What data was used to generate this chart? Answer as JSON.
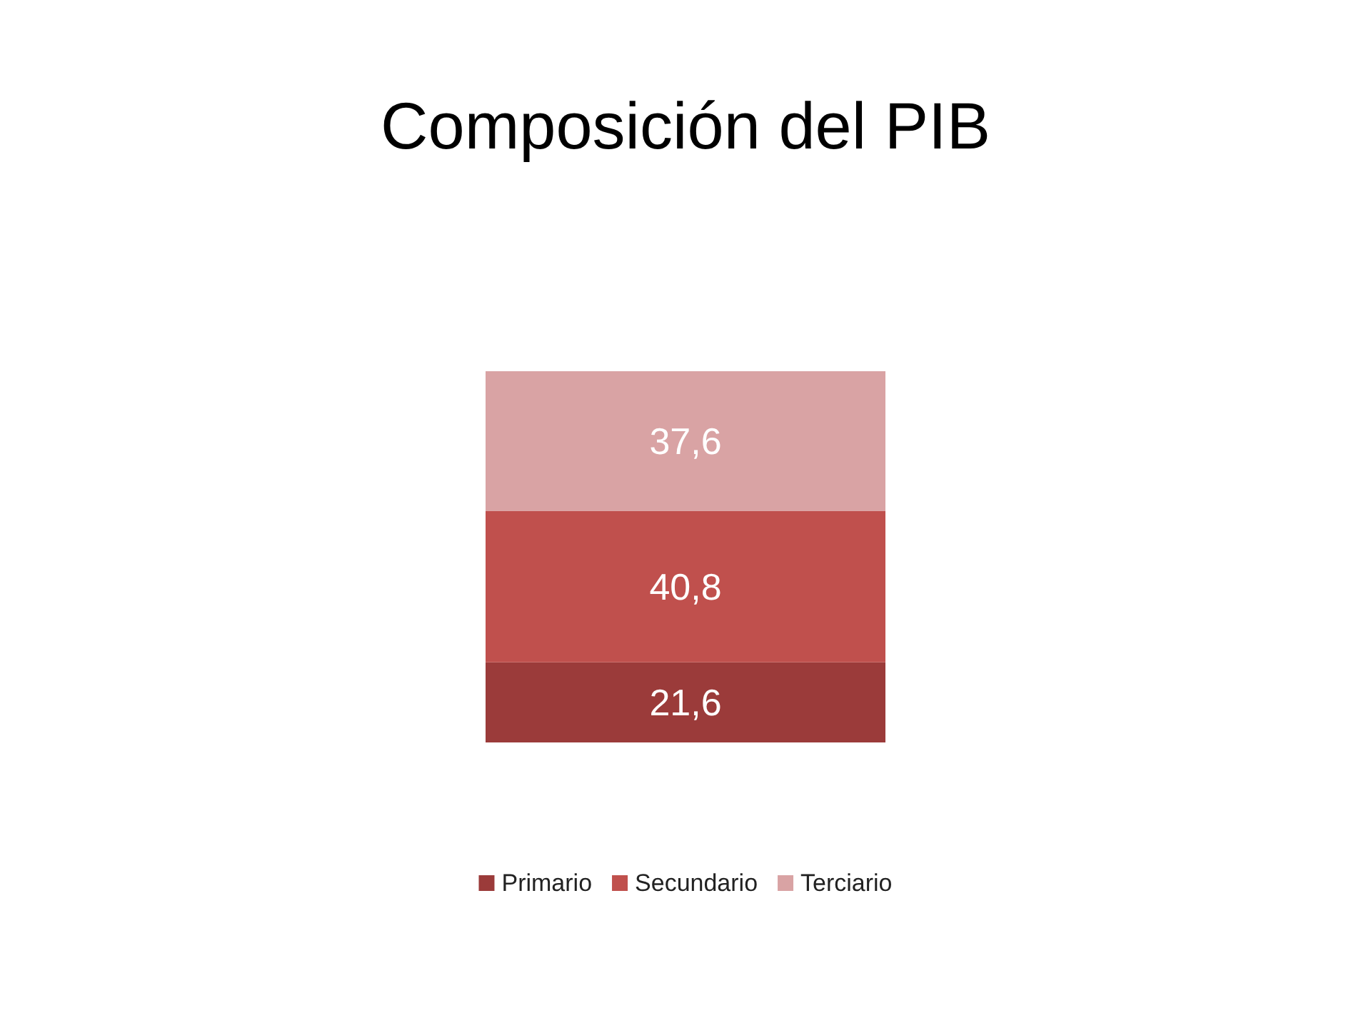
{
  "chart_data": {
    "type": "bar",
    "title": "Composición del PIB",
    "categories": [
      null
    ],
    "stacked": true,
    "legend": "bottom",
    "grid": false,
    "series": [
      {
        "name": "Primario",
        "color": "#9b3b3a",
        "values": [
          21.6
        ],
        "value_labels": [
          "21,6"
        ]
      },
      {
        "name": "Secundario",
        "color": "#c0504d",
        "values": [
          40.8
        ],
        "value_labels": [
          "40,8"
        ]
      },
      {
        "name": "Terciario",
        "color": "#d9a3a4",
        "values": [
          37.6
        ],
        "value_labels": [
          "37,6"
        ]
      }
    ]
  }
}
